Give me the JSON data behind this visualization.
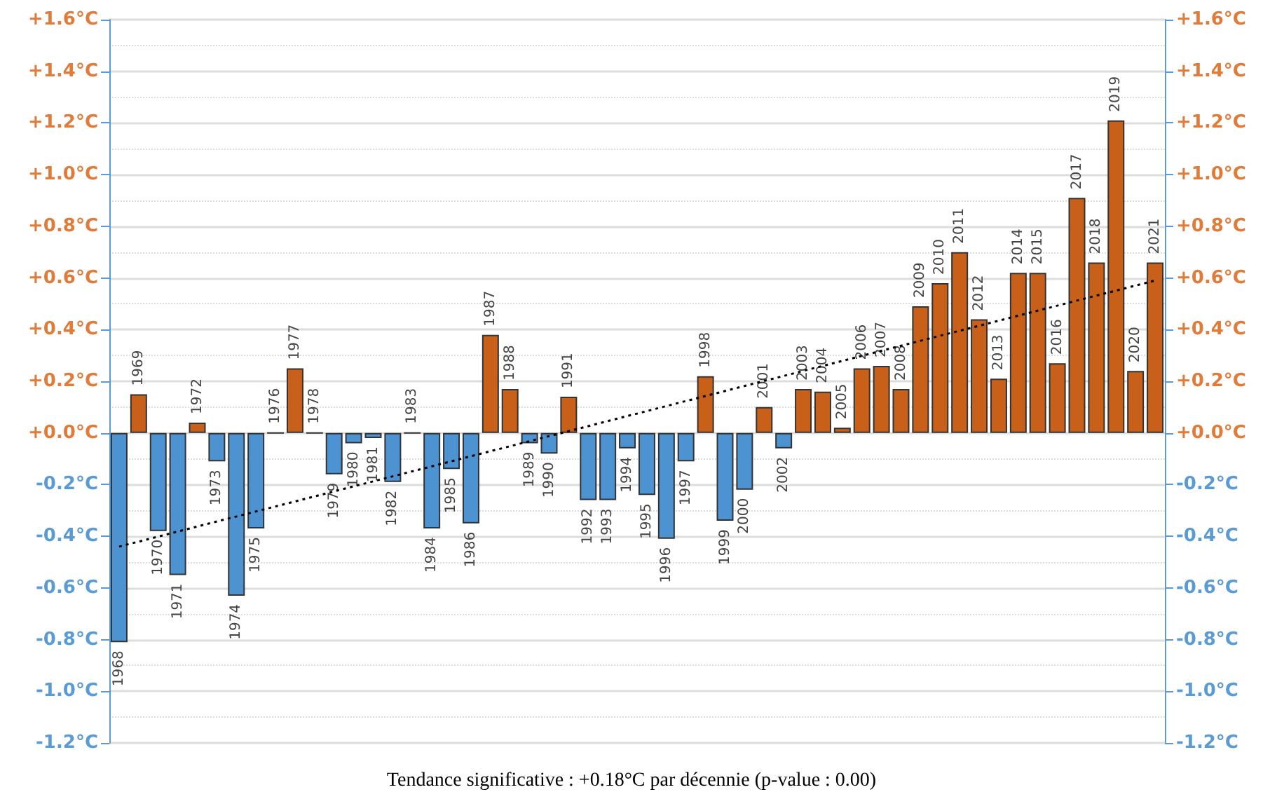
{
  "chart_data": {
    "type": "bar",
    "categories": [
      "1968",
      "1969",
      "1970",
      "1971",
      "1972",
      "1973",
      "1974",
      "1975",
      "1976",
      "1977",
      "1978",
      "1979",
      "1980",
      "1981",
      "1982",
      "1983",
      "1984",
      "1985",
      "1986",
      "1987",
      "1988",
      "1989",
      "1990",
      "1991",
      "1992",
      "1993",
      "1994",
      "1995",
      "1996",
      "1997",
      "1998",
      "1999",
      "2000",
      "2001",
      "2002",
      "2003",
      "2004",
      "2005",
      "2006",
      "2007",
      "2008",
      "2009",
      "2010",
      "2011",
      "2012",
      "2013",
      "2014",
      "2015",
      "2016",
      "2017",
      "2018",
      "2019",
      "2020",
      "2021"
    ],
    "series": [
      {
        "values": [
          -0.81,
          0.15,
          -0.38,
          -0.55,
          0.04,
          -0.11,
          -0.63,
          -0.37,
          0.0,
          0.25,
          0.0,
          -0.16,
          -0.04,
          -0.02,
          -0.19,
          0.0,
          -0.37,
          -0.14,
          -0.35,
          0.38,
          0.17,
          -0.04,
          -0.08,
          0.14,
          -0.26,
          -0.26,
          -0.06,
          -0.24,
          -0.41,
          -0.11,
          0.22,
          -0.34,
          -0.22,
          0.1,
          -0.06,
          0.17,
          0.16,
          0.02,
          0.25,
          0.26,
          0.17,
          0.49,
          0.58,
          0.7,
          0.44,
          0.21,
          0.62,
          0.62,
          0.27,
          0.91,
          0.66,
          1.21,
          0.24,
          0.66
        ],
        "colors": [
          "#4e93d1",
          "#c8601a",
          "#4e93d1",
          "#4e93d1",
          "#c8601a",
          "#4e93d1",
          "#4e93d1",
          "#4e93d1",
          "#333333",
          "#c8601a",
          "#333333",
          "#4e93d1",
          "#4e93d1",
          "#4e93d1",
          "#4e93d1",
          "#333333",
          "#4e93d1",
          "#4e93d1",
          "#4e93d1",
          "#c8601a",
          "#c8601a",
          "#4e93d1",
          "#4e93d1",
          "#c8601a",
          "#4e93d1",
          "#4e93d1",
          "#4e93d1",
          "#4e93d1",
          "#4e93d1",
          "#4e93d1",
          "#c8601a",
          "#4e93d1",
          "#4e93d1",
          "#c8601a",
          "#4e93d1",
          "#c8601a",
          "#c8601a",
          "#c8601a",
          "#c8601a",
          "#c8601a",
          "#c8601a",
          "#c8601a",
          "#c8601a",
          "#c8601a",
          "#c8601a",
          "#c8601a",
          "#c8601a",
          "#c8601a",
          "#c8601a",
          "#c8601a",
          "#c8601a",
          "#c8601a",
          "#c8601a",
          "#c8601a"
        ]
      },
      {
        "type": "line",
        "values": [
          -0.44,
          null,
          null,
          null,
          null,
          null,
          null,
          null,
          null,
          null,
          null,
          null,
          null,
          null,
          null,
          null,
          null,
          null,
          null,
          null,
          null,
          null,
          null,
          null,
          null,
          null,
          null,
          null,
          null,
          null,
          null,
          null,
          null,
          null,
          null,
          null,
          null,
          null,
          null,
          null,
          null,
          null,
          null,
          null,
          null,
          null,
          null,
          null,
          null,
          null,
          null,
          null,
          null,
          0.59
        ],
        "color": "#000000",
        "line_style": "dotted",
        "marker": "none"
      }
    ],
    "ylim": [
      -1.2,
      1.6
    ],
    "yticks": [
      {
        "value": -1.2,
        "label": "-1.2°C"
      },
      {
        "value": -1.0,
        "label": "-1.0°C"
      },
      {
        "value": -0.8,
        "label": "-0.8°C"
      },
      {
        "value": -0.6,
        "label": "-0.6°C"
      },
      {
        "value": -0.4,
        "label": "-0.4°C"
      },
      {
        "value": -0.2,
        "label": "-0.2°C"
      },
      {
        "value": 0,
        "label": "+0.0°C"
      },
      {
        "value": 0.2,
        "label": "+0.2°C"
      },
      {
        "value": 0.4,
        "label": "+0.4°C"
      },
      {
        "value": 0.6,
        "label": "+0.6°C"
      },
      {
        "value": 0.8,
        "label": "+0.8°C"
      },
      {
        "value": 1.0,
        "label": "+1.0°C"
      },
      {
        "value": 1.2,
        "label": "+1.2°C"
      },
      {
        "value": 1.4,
        "label": "+1.4°C"
      },
      {
        "value": 1.6,
        "label": "+1.6°C"
      }
    ],
    "y2lim": [
      -1.2,
      1.6
    ],
    "y2ticks": [
      {
        "value": -1.2,
        "label": "-1.2°C"
      },
      {
        "value": -1.0,
        "label": "-1.0°C"
      },
      {
        "value": -0.8,
        "label": "-0.8°C"
      },
      {
        "value": -0.6,
        "label": "-0.6°C"
      },
      {
        "value": -0.4,
        "label": "-0.4°C"
      },
      {
        "value": -0.2,
        "label": "-0.2°C"
      },
      {
        "value": 0,
        "label": "+0.0°C"
      },
      {
        "value": 0.2,
        "label": "+0.2°C"
      },
      {
        "value": 0.4,
        "label": "+0.4°C"
      },
      {
        "value": 0.6,
        "label": "+0.6°C"
      },
      {
        "value": 0.8,
        "label": "+0.8°C"
      },
      {
        "value": 1.0,
        "label": "+1.0°C"
      },
      {
        "value": 1.2,
        "label": "+1.2°C"
      },
      {
        "value": 1.4,
        "label": "+1.4°C"
      },
      {
        "value": 1.6,
        "label": "+1.6°C"
      }
    ],
    "grid": true,
    "annotations": [
      "Tendance significative : +0.18°C par décennie (p-value : 0.00)"
    ]
  }
}
